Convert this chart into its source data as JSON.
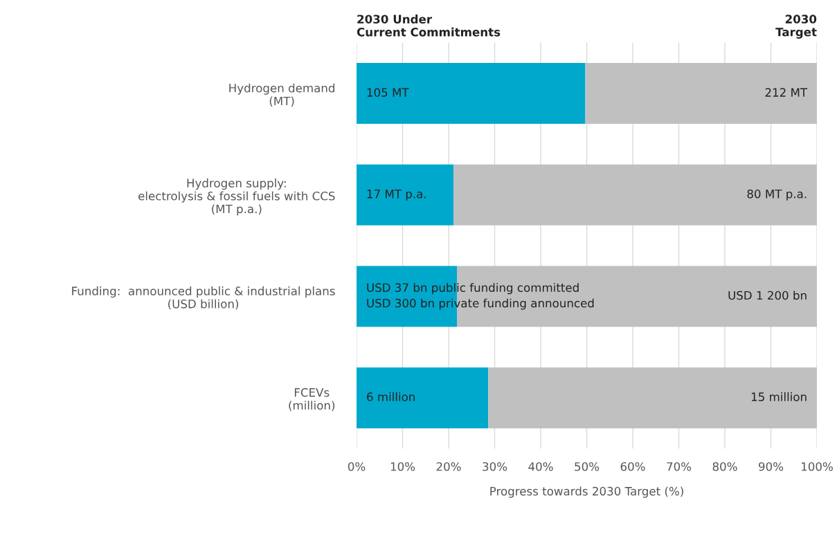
{
  "chart_data": {
    "type": "bar",
    "orientation": "horizontal",
    "stacked": true,
    "categories": [
      "Hydrogen demand\n(MT)",
      "Hydrogen supply:\nelectrolysis & fossil fuels with CCS\n(MT p.a.)",
      "Funding:  announced public & industrial plans\n(USD billion)",
      "FCEVs\n(million)"
    ],
    "series": [
      {
        "color": "#00a8cc",
        "values": [
          49.7,
          21.1,
          21.8,
          28.6
        ]
      },
      {
        "color": "#c0c0c0",
        "values": [
          50.3,
          78.9,
          78.2,
          71.4
        ]
      }
    ],
    "xlabel": "Progress towards 2030 Target (%)",
    "xlim": [
      0,
      100
    ],
    "xticks": [
      {
        "value": 0,
        "label": "0%"
      },
      {
        "value": 10,
        "label": "10%"
      },
      {
        "value": 20,
        "label": "20%"
      },
      {
        "value": 30,
        "label": "30%"
      },
      {
        "value": 40,
        "label": "40%"
      },
      {
        "value": 50,
        "label": "50%"
      },
      {
        "value": 60,
        "label": "60%"
      },
      {
        "value": 70,
        "label": "70%"
      },
      {
        "value": 80,
        "label": "80%"
      },
      {
        "value": 90,
        "label": "90%"
      },
      {
        "value": 100,
        "label": "100%"
      }
    ],
    "grid": "x",
    "annotations": [
      "2030 Under\nCurrent Commitments",
      "2030\nTarget",
      "105 MT",
      "212 MT",
      "17 MT p.a.",
      "80 MT p.a.",
      "USD 37 bn public funding committed\nUSD 300 bn private funding announced",
      "USD 1 200 bn",
      "6 million",
      "15 million"
    ]
  }
}
